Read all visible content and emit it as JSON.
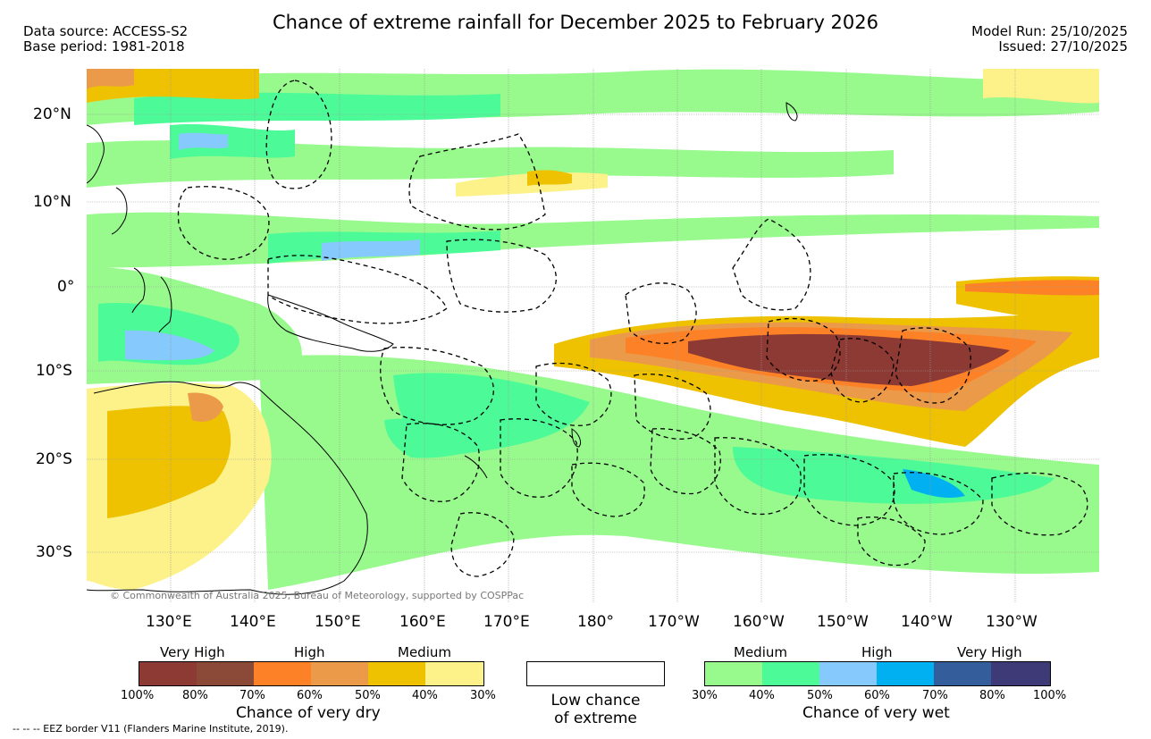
{
  "header": {
    "title": "Chance of extreme rainfall for December 2025 to February 2026",
    "data_source": "Data source: ACCESS-S2",
    "base_period": "Base period: 1981-2018",
    "model_run": "Model Run: 25/10/2025",
    "issued": "Issued: 27/10/2025"
  },
  "map": {
    "lat_labels": [
      "20°N",
      "10°N",
      "0°",
      "10°S",
      "20°S",
      "30°S"
    ],
    "lon_labels": [
      "130°E",
      "140°E",
      "150°E",
      "160°E",
      "170°E",
      "180°",
      "170°W",
      "160°W",
      "150°W",
      "140°W",
      "130°W"
    ],
    "credit": "© Commonwealth of Australia 2025, Bureau of Meteorology, supported by COSPPac"
  },
  "legend": {
    "dry": {
      "categories": [
        "Very High",
        "High",
        "Medium"
      ],
      "ticks": [
        "100%",
        "80%",
        "70%",
        "60%",
        "50%",
        "40%",
        "30%"
      ],
      "colors": [
        "#8c3a33",
        "#8b4a37",
        "#fd8127",
        "#eb9a4a",
        "#eec200",
        "#fdf28a"
      ],
      "caption": "Chance of very dry"
    },
    "low": {
      "line1": "Low chance",
      "line2": "of extreme"
    },
    "wet": {
      "categories": [
        "Medium",
        "High",
        "Very High"
      ],
      "ticks": [
        "30%",
        "40%",
        "50%",
        "60%",
        "70%",
        "80%",
        "100%"
      ],
      "colors": [
        "#98fa8d",
        "#4cfa97",
        "#86c9fc",
        "#00b0f0",
        "#335e9b",
        "#3d3a77"
      ],
      "caption": "Chance of very wet"
    }
  },
  "footer": {
    "eez_note": "--  --  -- EEZ border V11 (Flanders Marine Institute, 2019)."
  }
}
